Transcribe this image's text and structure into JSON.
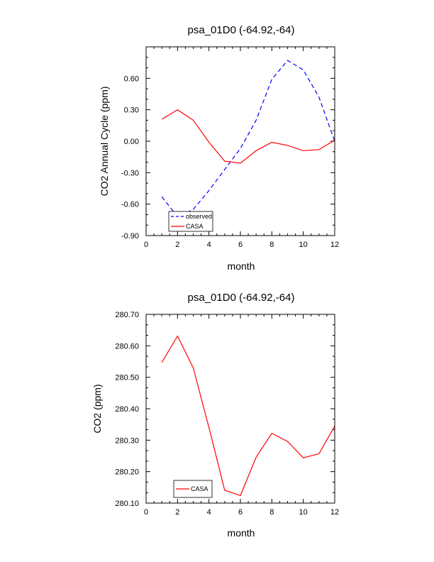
{
  "chart_data": [
    {
      "type": "line",
      "title": "psa_01D0 (-64.92,-64)",
      "xlabel": "month",
      "ylabel": "CO2 Annual Cycle (ppm)",
      "xlim": [
        0,
        12
      ],
      "ylim": [
        -0.9,
        0.9
      ],
      "xticks": [
        "0",
        "2",
        "4",
        "6",
        "8",
        "10",
        "12"
      ],
      "yticks": [
        "0.60",
        "0.30",
        "0.00",
        "-0.30",
        "-0.60",
        "-0.90"
      ],
      "ytick_values": [
        0.6,
        0.3,
        0.0,
        -0.3,
        -0.6,
        -0.9
      ],
      "grid": false,
      "legend_position": "bottom-left",
      "x": [
        1,
        2,
        3,
        4,
        5,
        6,
        7,
        8,
        9,
        10,
        11,
        12
      ],
      "series": [
        {
          "name": "observed",
          "color": "#0000ff",
          "style": "dashed",
          "values": [
            -0.53,
            -0.72,
            -0.65,
            -0.47,
            -0.27,
            -0.07,
            0.2,
            0.59,
            0.77,
            0.68,
            0.42,
            0.0
          ]
        },
        {
          "name": "CASA",
          "color": "#ff0000",
          "style": "solid",
          "values": [
            0.21,
            0.3,
            0.2,
            -0.01,
            -0.19,
            -0.21,
            -0.09,
            -0.01,
            -0.04,
            -0.09,
            -0.08,
            0.01
          ]
        }
      ]
    },
    {
      "type": "line",
      "title": "psa_01D0 (-64.92,-64)",
      "xlabel": "month",
      "ylabel": "CO2 (ppm)",
      "xlim": [
        0,
        12
      ],
      "ylim": [
        280.1,
        280.7
      ],
      "xticks": [
        "0",
        "2",
        "4",
        "6",
        "8",
        "10",
        "12"
      ],
      "yticks": [
        "280.70",
        "280.60",
        "280.50",
        "280.40",
        "280.30",
        "280.20",
        "280.10"
      ],
      "ytick_values": [
        280.7,
        280.6,
        280.5,
        280.4,
        280.3,
        280.2,
        280.1
      ],
      "grid": false,
      "legend_position": "bottom-left",
      "x": [
        1,
        2,
        3,
        4,
        5,
        6,
        7,
        8,
        9,
        10,
        11,
        12
      ],
      "series": [
        {
          "name": "CASA",
          "color": "#ff0000",
          "style": "solid",
          "values": [
            280.547,
            280.631,
            280.53,
            280.34,
            280.141,
            280.124,
            280.246,
            280.322,
            280.296,
            280.244,
            280.257,
            280.345
          ]
        }
      ]
    }
  ]
}
